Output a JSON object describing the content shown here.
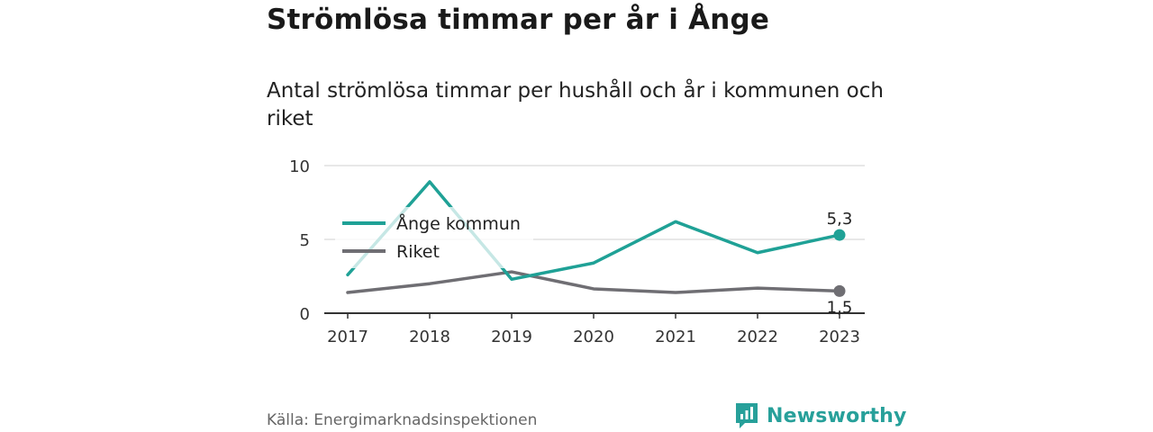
{
  "title": "Strömlösa timmar per år i Ånge",
  "subtitle": "Antal strömlösa timmar per hushåll och år i kommunen och riket",
  "source": "Källa: Energimarknadsinspektionen",
  "brand": {
    "name": "Newsworthy",
    "icon": "newsworthy-logo-icon",
    "color": "#27a09a"
  },
  "chart_data": {
    "type": "line",
    "x": [
      "2017",
      "2018",
      "2019",
      "2020",
      "2021",
      "2022",
      "2023"
    ],
    "ylim": [
      0,
      10
    ],
    "yticks": [
      "0",
      "5",
      "10"
    ],
    "grid": true,
    "legend_position": "upper-left",
    "series": [
      {
        "name": "Ånge kommun",
        "color": "#1fa196",
        "values": [
          2.6,
          8.9,
          2.3,
          3.4,
          6.2,
          4.1,
          5.3
        ],
        "end_label": "5,3"
      },
      {
        "name": "Riket",
        "color": "#6f6e73",
        "values": [
          1.4,
          2.0,
          2.8,
          1.65,
          1.4,
          1.7,
          1.5
        ],
        "end_label": "1,5"
      }
    ]
  }
}
